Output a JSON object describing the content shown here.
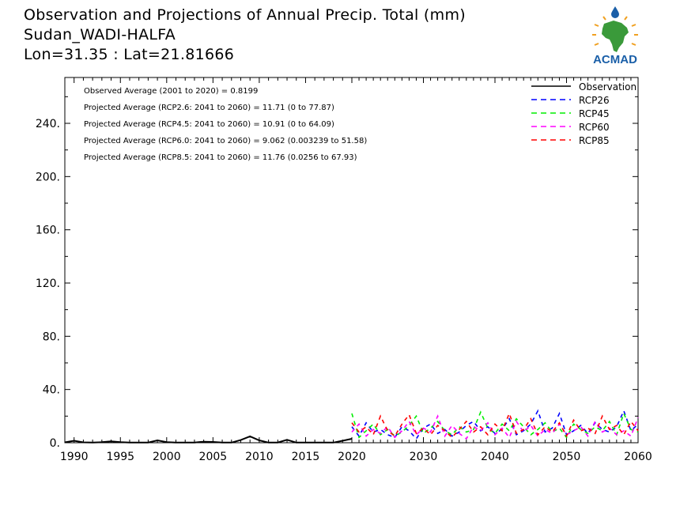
{
  "header": {
    "title_line1": "Observation and Projections of Annual Precip. Total (mm)",
    "title_line2": "Sudan_WADI-HALFA",
    "title_line3": "Lon=31.35 : Lat=21.81666"
  },
  "logo": {
    "text": "ACMAD",
    "color": "#1a5fa8",
    "accent": "#f0a020",
    "africa": "#3a9a3a"
  },
  "annotations": [
    "Observed Average (2001 to 2020) = 0.8199",
    "Projected Average (RCP2.6: 2041 to 2060) = 11.71 (0 to 77.87)",
    "Projected Average (RCP4.5: 2041 to 2060) = 10.91 (0 to 64.09)",
    "Projected Average (RCP6.0: 2041 to 2060) = 9.062 (0.003239 to 51.58)",
    "Projected Average (RCP8.5: 2041 to 2060) = 11.76 (0.0256 to 67.93)"
  ],
  "chart_data": {
    "type": "line",
    "title": "Observation and Projections of Annual Precip. Total (mm)",
    "xlabel": "",
    "ylabel": "",
    "xlim": [
      1989,
      2060
    ],
    "ylim": [
      0,
      270
    ],
    "x_ticks": [
      1990,
      1995,
      2000,
      2005,
      2010,
      2015,
      2020,
      2030,
      2040,
      2050,
      2060
    ],
    "y_ticks": [
      0,
      40,
      80,
      120,
      160,
      200,
      240
    ],
    "y_tick_labels": [
      "0.",
      "40.",
      "80.",
      "120.",
      "160.",
      "200.",
      "240."
    ],
    "legend_position": "top-right",
    "series": [
      {
        "name": "Observation",
        "color": "#000000",
        "dash": "solid",
        "x": [
          1989,
          1990,
          1991,
          1992,
          1993,
          1994,
          1995,
          1996,
          1997,
          1998,
          1999,
          2000,
          2001,
          2002,
          2003,
          2004,
          2005,
          2006,
          2007,
          2008,
          2009,
          2010,
          2011,
          2012,
          2013,
          2014,
          2015,
          2016,
          2017,
          2018,
          2019,
          2020
        ],
        "y": [
          0.3,
          1.5,
          0.3,
          0.2,
          0.4,
          1.0,
          0.4,
          0.1,
          0.1,
          0.2,
          1.8,
          0.5,
          0.1,
          0.1,
          0.2,
          0.8,
          0.6,
          0.2,
          0.1,
          2.0,
          4.8,
          1.8,
          0.1,
          0.2,
          2.2,
          0.1,
          0.1,
          0.1,
          0.1,
          0.1,
          1.5,
          3.0
        ]
      },
      {
        "name": "RCP26",
        "color": "#0000ff",
        "dash": "dashed",
        "x": [
          2020,
          2021,
          2022,
          2023,
          2024,
          2025,
          2026,
          2027,
          2028,
          2029,
          2030,
          2031,
          2032,
          2033,
          2034,
          2035,
          2036,
          2037,
          2038,
          2039,
          2040,
          2041,
          2042,
          2043,
          2044,
          2045,
          2046,
          2047,
          2048,
          2049,
          2050,
          2051,
          2052,
          2053,
          2054,
          2055,
          2056,
          2057,
          2058,
          2059,
          2060
        ],
        "y": [
          12,
          5,
          15,
          8,
          10,
          6,
          4,
          12,
          9,
          3,
          11,
          14,
          7,
          10,
          5,
          8,
          13,
          16,
          9,
          12,
          7,
          10,
          18,
          6,
          9,
          14,
          24,
          8,
          11,
          22,
          6,
          9,
          13,
          7,
          15,
          10,
          8,
          12,
          24,
          9,
          14
        ]
      },
      {
        "name": "RCP45",
        "color": "#00ee00",
        "dash": "dashed",
        "x": [
          2020,
          2021,
          2022,
          2023,
          2024,
          2025,
          2026,
          2027,
          2028,
          2029,
          2030,
          2031,
          2032,
          2033,
          2034,
          2035,
          2036,
          2037,
          2038,
          2039,
          2040,
          2041,
          2042,
          2043,
          2044,
          2045,
          2046,
          2047,
          2048,
          2049,
          2050,
          2051,
          2052,
          2053,
          2054,
          2055,
          2056,
          2057,
          2058,
          2059,
          2060
        ],
        "y": [
          22,
          4,
          9,
          14,
          6,
          10,
          5,
          8,
          13,
          20,
          7,
          11,
          16,
          9,
          6,
          12,
          8,
          10,
          23,
          11,
          7,
          14,
          9,
          18,
          12,
          6,
          10,
          15,
          8,
          11,
          4,
          14,
          10,
          7,
          12,
          9,
          16,
          6,
          22,
          10,
          8
        ]
      },
      {
        "name": "RCP60",
        "color": "#ff00ff",
        "dash": "dashed",
        "x": [
          2020,
          2021,
          2022,
          2023,
          2024,
          2025,
          2026,
          2027,
          2028,
          2029,
          2030,
          2031,
          2032,
          2033,
          2034,
          2035,
          2036,
          2037,
          2038,
          2039,
          2040,
          2041,
          2042,
          2043,
          2044,
          2045,
          2046,
          2047,
          2048,
          2049,
          2050,
          2051,
          2052,
          2053,
          2054,
          2055,
          2056,
          2057,
          2058,
          2059,
          2060
        ],
        "y": [
          8,
          14,
          5,
          10,
          7,
          12,
          4,
          9,
          16,
          6,
          11,
          8,
          20,
          5,
          13,
          7,
          3,
          12,
          9,
          15,
          6,
          11,
          4,
          16,
          8,
          13,
          5,
          10,
          7,
          14,
          6,
          9,
          12,
          5,
          16,
          8,
          11,
          6,
          9,
          5,
          19
        ]
      },
      {
        "name": "RCP85",
        "color": "#ff0000",
        "dash": "dashed",
        "x": [
          2020,
          2021,
          2022,
          2023,
          2024,
          2025,
          2026,
          2027,
          2028,
          2029,
          2030,
          2031,
          2032,
          2033,
          2034,
          2035,
          2036,
          2037,
          2038,
          2039,
          2040,
          2041,
          2042,
          2043,
          2044,
          2045,
          2046,
          2047,
          2048,
          2049,
          2050,
          2051,
          2052,
          2053,
          2054,
          2055,
          2056,
          2057,
          2058,
          2059,
          2060
        ],
        "y": [
          15,
          8,
          12,
          6,
          20,
          9,
          5,
          14,
          21,
          7,
          11,
          6,
          13,
          9,
          4,
          10,
          16,
          8,
          12,
          6,
          14,
          9,
          22,
          7,
          10,
          18,
          6,
          12,
          8,
          15,
          5,
          17,
          9,
          11,
          7,
          20,
          10,
          13,
          6,
          16,
          9
        ]
      }
    ]
  }
}
